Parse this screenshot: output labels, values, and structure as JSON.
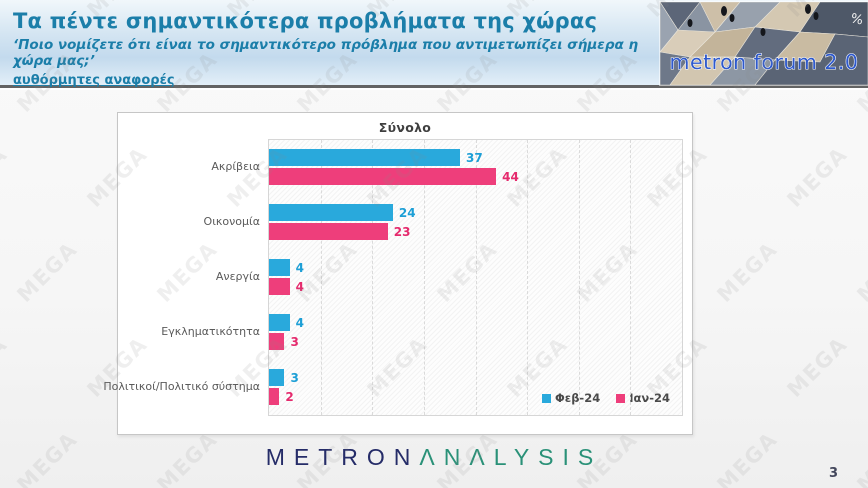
{
  "header": {
    "title": "Τα πέντε σημαντικότερα προβλήματα της χώρας",
    "subtitle": "‘Ποιο νομίζετε ότι είναι το σημαντικότερο πρόβλημα που αντιμετωπίζει σήμερα η χώρα μας;’",
    "note": "αυθόρμητες αναφορές"
  },
  "logo": {
    "text": "metron forum 2.0",
    "percent_symbol": "%"
  },
  "watermark": {
    "text": "MEGA"
  },
  "chart_data": {
    "type": "bar",
    "orientation": "horizontal",
    "title": "Σύνολο",
    "categories": [
      "Ακρίβεια",
      "Οικονομία",
      "Ανεργία",
      "Εγκληματικότητα",
      "Πολιτικοί/Πολιτικό σύστημα"
    ],
    "series": [
      {
        "name": "Φεβ-24",
        "color": "#29A9DC",
        "label_color": "#1d9fd6",
        "values": [
          37,
          24,
          4,
          4,
          3
        ]
      },
      {
        "name": "Ιαν-24",
        "color": "#EE3E7B",
        "label_color": "#e52a6d",
        "values": [
          44,
          23,
          4,
          3,
          2
        ]
      }
    ],
    "xlim": [
      0,
      80
    ],
    "grid_interval": 10,
    "grid": "vertical-dashed",
    "legend_position": "bottom-right",
    "plot_background": "hatched",
    "xlabel": "",
    "ylabel": ""
  },
  "footer": {
    "brand_primary": "METRON",
    "brand_secondary": "ΛNΛLYSIS",
    "page_number": "3"
  }
}
